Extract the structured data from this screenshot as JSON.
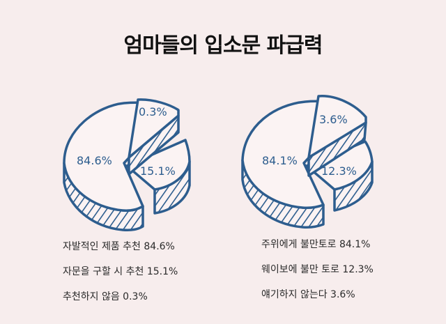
{
  "title": "엄마들의 입소문 파급력",
  "colors": {
    "stroke": "#2d5d8e",
    "fill": "#fbf3f3",
    "background": "#f7eded"
  },
  "chart_data": [
    {
      "type": "pie",
      "style": "3d-exploded-hatched",
      "labels": [
        "84.6%",
        "15.1%",
        "0.3%"
      ],
      "values": [
        84.6,
        15.1,
        0.3
      ],
      "legend": [
        "자발적인 제품 추천 84.6%",
        "자문을 구할 시 추천 15.1%",
        "추천하지 않음 0.3%"
      ]
    },
    {
      "type": "pie",
      "style": "3d-exploded-hatched",
      "labels": [
        "84.1%",
        "12.3%",
        "3.6%"
      ],
      "values": [
        84.1,
        12.3,
        3.6
      ],
      "legend": [
        "주위에게 불만토로 84.1%",
        "웨이보에 불만 토로 12.3%",
        "얘기하지 않는다 3.6%"
      ]
    }
  ]
}
